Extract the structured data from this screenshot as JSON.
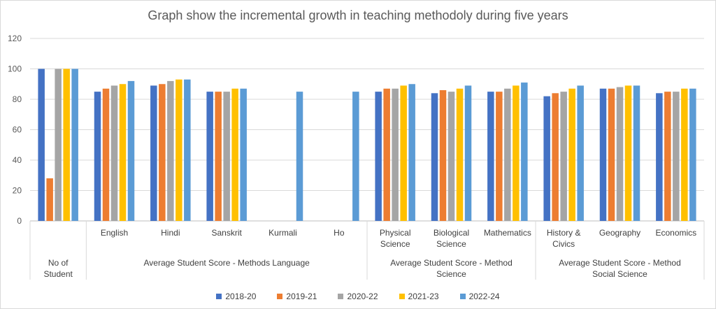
{
  "chart_data": {
    "type": "bar",
    "title": "Graph show the incremental growth in teaching methodoly during five years",
    "xlabel": "",
    "ylabel": "",
    "ylim": [
      0,
      120
    ],
    "yticks": [
      0,
      20,
      40,
      60,
      80,
      100,
      120
    ],
    "grid": true,
    "legend_position": "bottom",
    "groups": [
      {
        "name": "No of Student",
        "categories": [
          ""
        ]
      },
      {
        "name": "Average Student Score - Methods Language",
        "categories": [
          "English",
          "Hindi",
          "Sanskrit",
          "Kurmali",
          "Ho"
        ]
      },
      {
        "name": "Average Student Score - Method Science",
        "categories": [
          "Physical Science",
          "Biological Science",
          "Mathematics"
        ]
      },
      {
        "name": "Average Student Score - Method Social Science",
        "categories": [
          "History & Civics",
          "Geography",
          "Economics"
        ]
      }
    ],
    "categories": [
      "",
      "English",
      "Hindi",
      "Sanskrit",
      "Kurmali",
      "Ho",
      "Physical Science",
      "Biological Science",
      "Mathematics",
      "History & Civics",
      "Geography",
      "Economics"
    ],
    "series": [
      {
        "name": "2018-20",
        "color": "#4472C4",
        "values": [
          100,
          85,
          89,
          85,
          null,
          null,
          85,
          84,
          85,
          82,
          87,
          84
        ]
      },
      {
        "name": "2019-21",
        "color": "#ED7D31",
        "values": [
          28,
          87,
          90,
          85,
          null,
          null,
          87,
          86,
          85,
          84,
          87,
          85
        ]
      },
      {
        "name": "2020-22",
        "color": "#A5A5A5",
        "values": [
          100,
          89,
          92,
          85,
          null,
          null,
          87,
          85,
          87,
          85,
          88,
          85
        ]
      },
      {
        "name": "2021-23",
        "color": "#FFC000",
        "values": [
          100,
          90,
          93,
          87,
          null,
          null,
          89,
          87,
          89,
          87,
          89,
          87
        ]
      },
      {
        "name": "2022-24",
        "color": "#5B9BD5",
        "values": [
          100,
          92,
          93,
          87,
          85,
          85,
          90,
          89,
          91,
          89,
          89,
          87
        ]
      }
    ]
  }
}
